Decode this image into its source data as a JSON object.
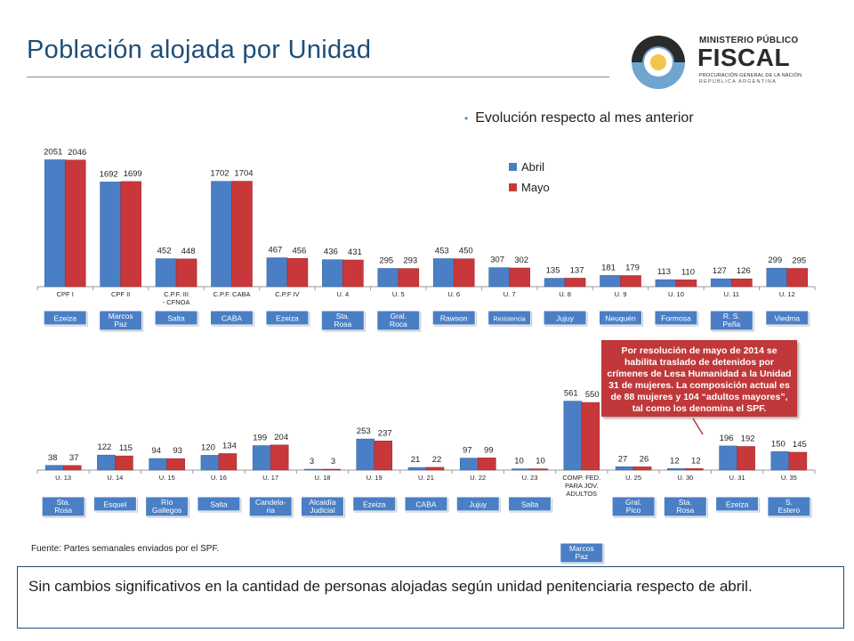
{
  "header": {
    "title": "Población alojada por Unidad"
  },
  "logo": {
    "line1": "MINISTERIO PÚBLICO",
    "line2": "FISCAL",
    "line3": "PROCURACIÓN GENERAL DE LA NACIÓN",
    "line4": "REPÚBLICA ARGENTINA"
  },
  "bullet": "Evolución respecto al mes anterior",
  "legend": {
    "series1": "Abril",
    "series2": "Mayo"
  },
  "colors": {
    "abril": "#4a7fc6",
    "mayo": "#c8383a",
    "badge": "#4a7fc6"
  },
  "chart_data": [
    {
      "type": "bar",
      "categories": [
        "CPF I",
        "CPF II",
        "C.P.F. III - CFNOA",
        "C.P.F. CABA",
        "C.P.F IV",
        "U. 4",
        "U. 5",
        "U. 6",
        "U. 7",
        "U. 8",
        "U. 9",
        "U. 10",
        "U. 11",
        "U. 12"
      ],
      "locations": [
        "Ezeiza",
        "Marcos Paz",
        "Salta",
        "CABA",
        "Ezeiza",
        "Sta. Rosa",
        "Gral. Roca",
        "Rawson",
        "Resistencia",
        "Jujuy",
        "Neuquén",
        "Formosa",
        "R. S. Peña",
        "Viedma"
      ],
      "series": [
        {
          "name": "Abril",
          "values": [
            2051,
            1692,
            452,
            1702,
            467,
            436,
            295,
            453,
            307,
            135,
            181,
            113,
            127,
            299
          ]
        },
        {
          "name": "Mayo",
          "values": [
            2046,
            1699,
            448,
            1704,
            456,
            431,
            293,
            450,
            302,
            137,
            179,
            110,
            126,
            295
          ]
        }
      ]
    },
    {
      "type": "bar",
      "categories": [
        "U. 13",
        "U. 14",
        "U. 15",
        "U. 16",
        "U. 17",
        "U. 18",
        "U. 19",
        "U. 21",
        "U. 22",
        "U. 23",
        "COMP. FED. PARA JOV. ADULTOS",
        "U. 25",
        "U. 30",
        "U. 31",
        "U. 35"
      ],
      "locations": [
        "Sta. Rosa",
        "Esquel",
        "Río Gallegos",
        "Salta",
        "Candela-ria",
        "Alcaidía Judicial",
        "Ezeiza",
        "CABA",
        "Jujuy",
        "Salta",
        "Marcos Paz",
        "Gral. Pico",
        "Sta. Rosa",
        "Ezeiza",
        "S. Estero"
      ],
      "series": [
        {
          "name": "Abril",
          "values": [
            38,
            122,
            94,
            120,
            199,
            3,
            253,
            21,
            97,
            10,
            561,
            27,
            12,
            196,
            150
          ]
        },
        {
          "name": "Mayo",
          "values": [
            37,
            115,
            93,
            134,
            204,
            3,
            237,
            22,
            99,
            10,
            550,
            26,
            12,
            192,
            145
          ]
        }
      ]
    }
  ],
  "note": "Por resolución de mayo de 2014 se habilita traslado de detenidos por crímenes de Lesa Humanidad a la Unidad 31 de mujeres. La composición actual es de 88 mujeres y 104 “adultos mayores”, tal como los denomina el SPF.",
  "source": "Fuente: Partes semanales enviados por el SPF.",
  "summary": "Sin cambios significativos en la cantidad de personas alojadas según unidad penitenciaria respecto de abril."
}
